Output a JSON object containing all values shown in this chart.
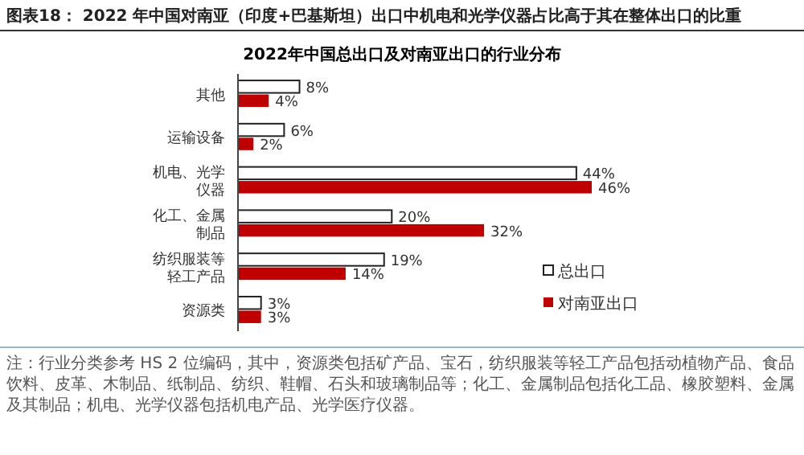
{
  "chart_data": {
    "type": "bar",
    "orientation": "horizontal",
    "title": "图表18： 2022 年中国对南亚（印度+巴基斯坦）出口中机电和光学仪器占比高于其在整体出口的比重",
    "subtitle": "2022年中国总出口及对南亚出口的行业分布",
    "categories": [
      "其他",
      "运输设备",
      "机电、光学仪器",
      "化工、金属制品",
      "纺织服装等轻工产品",
      "资源类"
    ],
    "series": [
      {
        "name": "总出口",
        "color": "#ffffff",
        "values": [
          8,
          6,
          44,
          20,
          19,
          3
        ],
        "value_labels": [
          "8%",
          "6%",
          "44%",
          "20%",
          "19%",
          "3%"
        ]
      },
      {
        "name": "对南亚出口",
        "color": "#c00000",
        "values": [
          4,
          2,
          46,
          32,
          14,
          3
        ],
        "value_labels": [
          "4%",
          "2%",
          "46%",
          "32%",
          "14%",
          "3%"
        ]
      }
    ],
    "legend": "right",
    "annotations": [
      "注：行业分类参考 HS 2 位编码，其中，资源类包括矿产品、宝石，纺织服装等轻工产品包括动植物产品、食品饮料、皮革、木制品、纸制品、纺织、鞋帽、石头和玻璃制品等；化工、金属制品包括化工品、橡胶塑料、金属及其制品；机电、光学仪器包括机电产品、光学医疗仪器。"
    ]
  }
}
